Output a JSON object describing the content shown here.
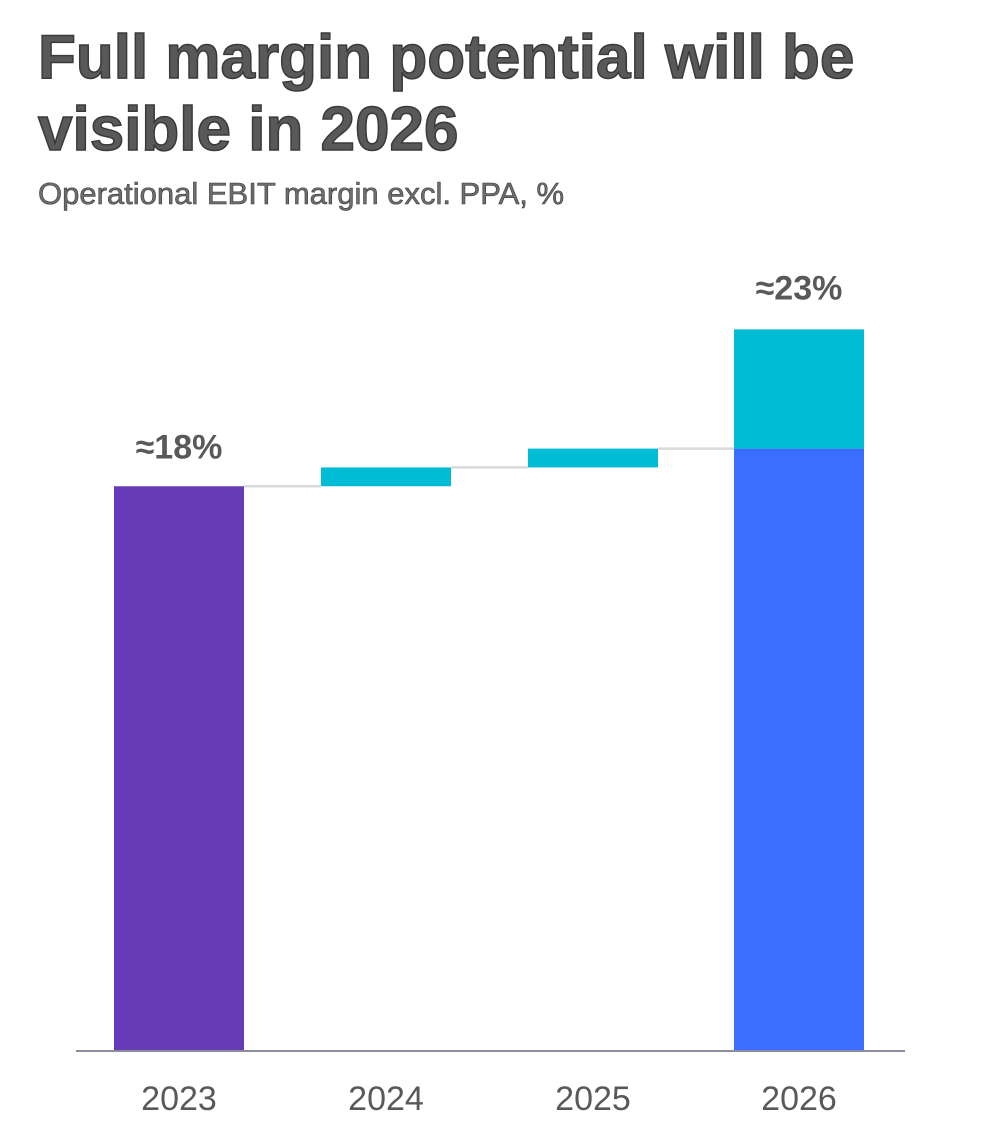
{
  "title": "Full margin potential will be visible in 2026",
  "subtitle": "Operational EBIT margin excl. PPA, %",
  "chart_data": {
    "type": "bar",
    "subtype": "waterfall",
    "title": "Full margin potential will be visible in 2026",
    "subtitle": "Operational EBIT margin excl. PPA, %",
    "categories": [
      "2023",
      "2024",
      "2025",
      "2026"
    ],
    "base": {
      "category": "2023",
      "value": 18,
      "label": "≈18%",
      "color": "#673AB7"
    },
    "increments": [
      {
        "category": "2024",
        "start": 18,
        "end": 18.6,
        "color": "#00BCD4"
      },
      {
        "category": "2025",
        "start": 18.6,
        "end": 19.2,
        "color": "#00BCD4"
      }
    ],
    "total": {
      "category": "2026",
      "label": "≈23%",
      "segments": [
        {
          "start": 0,
          "end": 19.2,
          "color": "#3B6EFF"
        },
        {
          "start": 19.2,
          "end": 23,
          "color": "#00BCD4"
        }
      ]
    },
    "ylim": [
      0,
      24
    ],
    "xlabel": "",
    "ylabel": "",
    "grid": false,
    "connector_color": "#D9D9D9",
    "axis_color": "#8c8ca0"
  }
}
